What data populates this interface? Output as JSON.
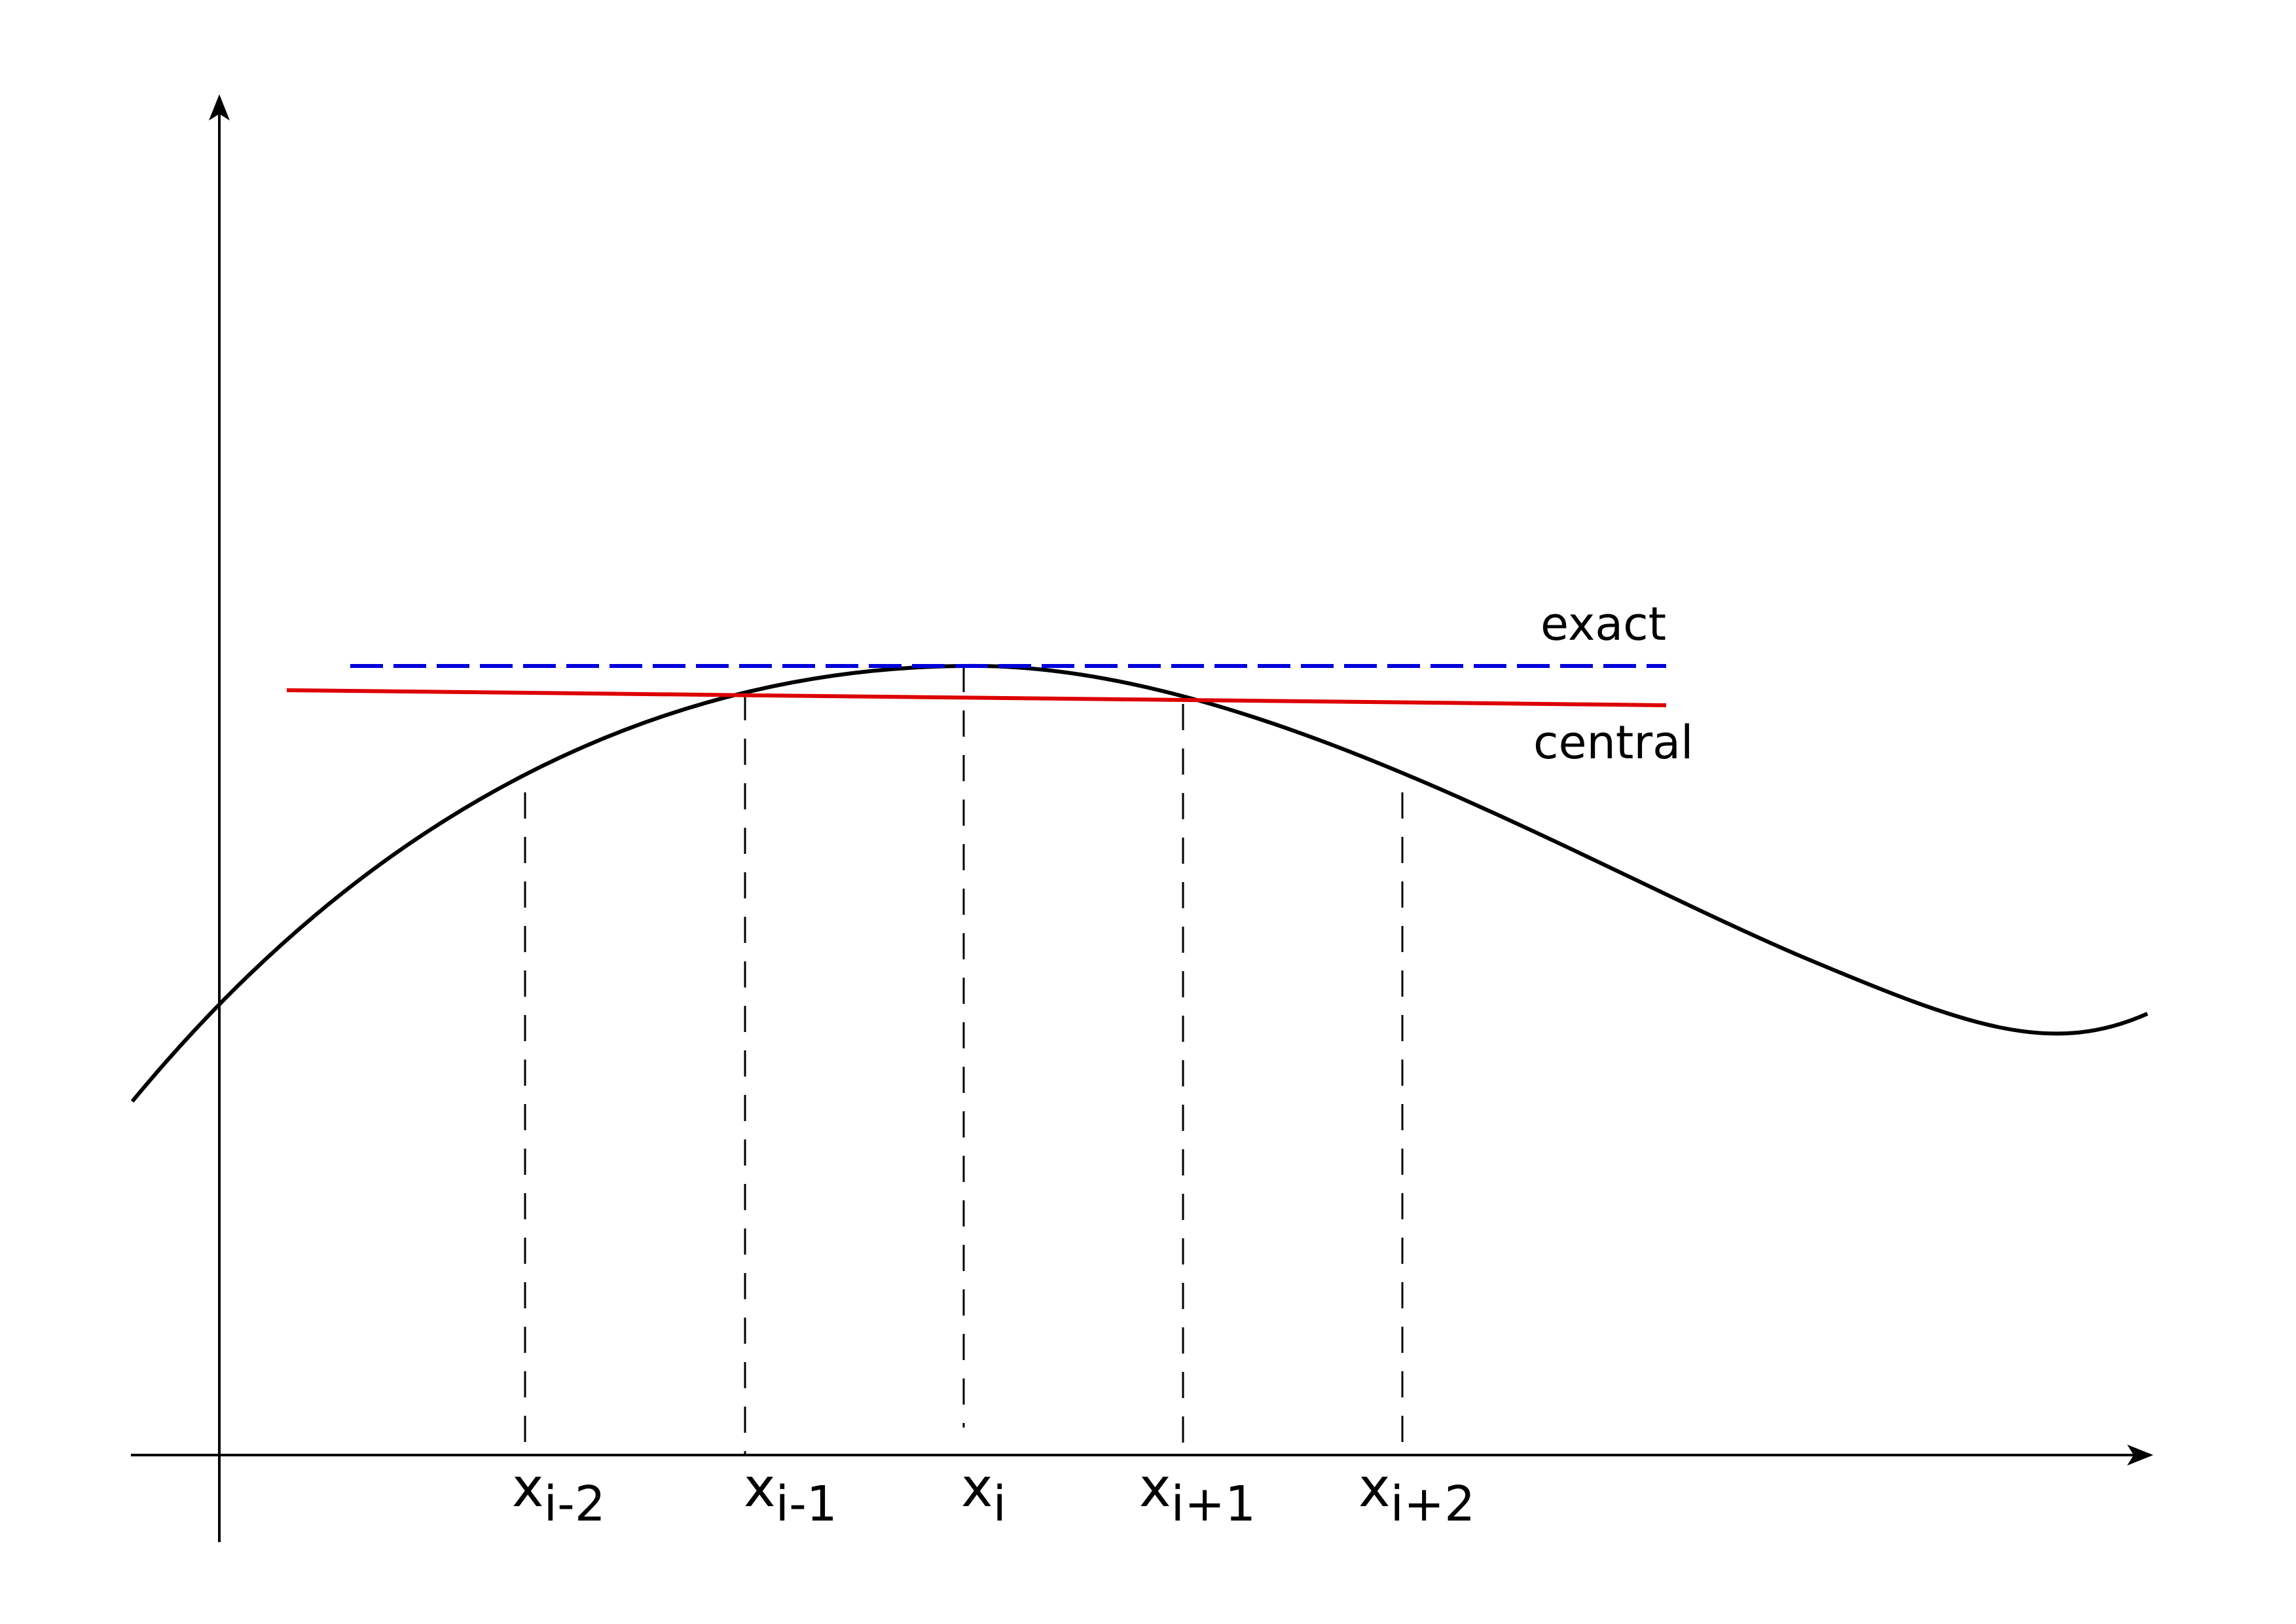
{
  "diagram": {
    "lines": {
      "exact": {
        "label": "exact",
        "color": "#0000dd",
        "style": "dashed"
      },
      "central": {
        "label": "central",
        "color": "#dd0000",
        "style": "solid"
      }
    },
    "curve_color": "#000000",
    "axis_color": "#000000",
    "ticks": [
      {
        "base": "x",
        "sub": "i-2"
      },
      {
        "base": "x",
        "sub": "i-1"
      },
      {
        "base": "x",
        "sub": "i"
      },
      {
        "base": "x",
        "sub": "i+1"
      },
      {
        "base": "x",
        "sub": "i+2"
      }
    ]
  }
}
